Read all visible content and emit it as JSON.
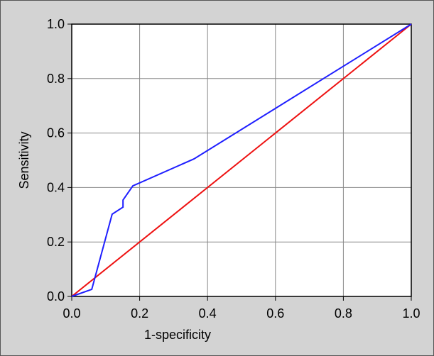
{
  "chart_data": {
    "type": "line",
    "x_label": "1-specificity",
    "y_label": "Sensitivity",
    "series": [
      {
        "color": "#1f1fff",
        "x": [
          0,
          0.059,
          0.119,
          0.151,
          0.151,
          0.18,
          0.36,
          1
        ],
        "values": [
          0,
          0.026,
          0.302,
          0.328,
          0.354,
          0.406,
          0.505,
          1
        ]
      },
      {
        "color": "#ee1111",
        "x": [
          0,
          1
        ],
        "values": [
          0,
          1
        ]
      }
    ],
    "xlim": [
      0,
      1
    ],
    "ylim": [
      0,
      1
    ],
    "xticks": [
      {
        "value": 0,
        "label": "0.0"
      },
      0.2,
      0.4,
      0.6,
      0.8,
      {
        "value": 1,
        "label": "1.0"
      }
    ],
    "yticks": [
      {
        "value": 0,
        "label": "0.0"
      },
      0.2,
      0.4,
      0.6,
      0.8,
      {
        "value": 1,
        "label": "1.0"
      }
    ],
    "grid": true
  }
}
